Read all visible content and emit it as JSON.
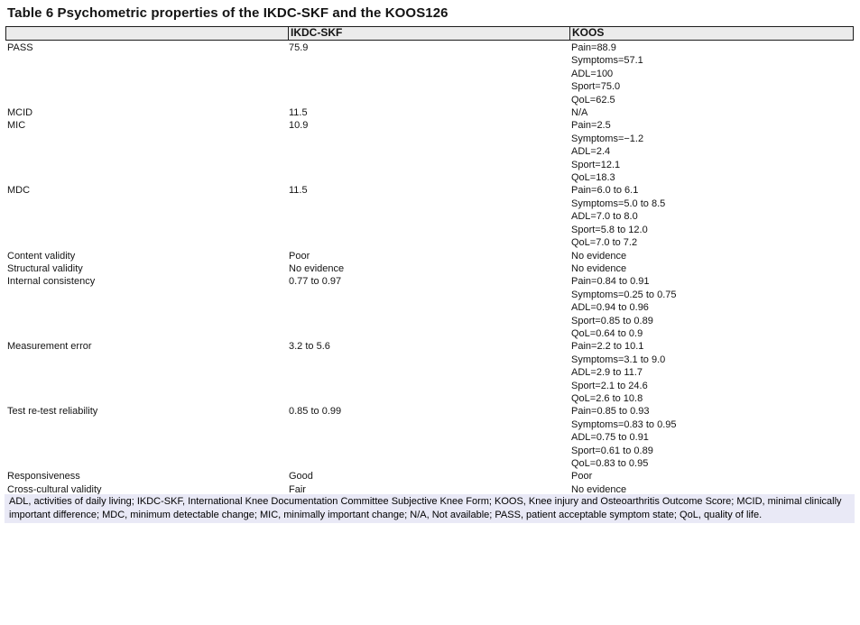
{
  "page": {
    "title": "Table 6 Psychometric properties of the IKDC-SKF and the KOOS126"
  },
  "table": {
    "header": {
      "col1": "",
      "col2": "IKDC-SKF",
      "col3": "KOOS"
    },
    "rows": [
      {
        "property": "PASS",
        "ikdc_skf": "75.9",
        "koos": [
          "Pain=88.9",
          "Symptoms=57.1",
          "ADL=100",
          "Sport=75.0",
          "QoL=62.5"
        ]
      },
      {
        "property": "MCID",
        "ikdc_skf": "11.5",
        "koos": [
          "N/A"
        ]
      },
      {
        "property": "MIC",
        "ikdc_skf": "10.9",
        "koos": [
          "Pain=2.5",
          "Symptoms=−1.2",
          "ADL=2.4",
          "Sport=12.1",
          "QoL=18.3"
        ]
      },
      {
        "property": "MDC",
        "ikdc_skf": "11.5",
        "koos": [
          "Pain=6.0 to 6.1",
          "Symptoms=5.0 to 8.5",
          "ADL=7.0 to 8.0",
          "Sport=5.8 to 12.0",
          "QoL=7.0 to 7.2"
        ]
      },
      {
        "property": "Content validity",
        "ikdc_skf": "Poor",
        "koos": [
          "No evidence"
        ]
      },
      {
        "property": "Structural validity",
        "ikdc_skf": "No evidence",
        "koos": [
          "No evidence"
        ]
      },
      {
        "property": "Internal consistency",
        "ikdc_skf": "0.77 to 0.97",
        "koos": [
          "Pain=0.84 to 0.91",
          "Symptoms=0.25 to 0.75",
          "ADL=0.94 to 0.96",
          "Sport=0.85 to 0.89",
          "QoL=0.64 to 0.9"
        ]
      },
      {
        "property": "Measurement error",
        "ikdc_skf": "3.2 to 5.6",
        "koos": [
          "Pain=2.2 to 10.1",
          "Symptoms=3.1 to 9.0",
          "ADL=2.9 to 11.7",
          "Sport=2.1 to 24.6",
          "QoL=2.6 to 10.8"
        ]
      },
      {
        "property": "Test re-test reliability",
        "ikdc_skf": "0.85 to 0.99",
        "koos": [
          "Pain=0.85 to 0.93",
          "Symptoms=0.83 to 0.95",
          "ADL=0.75 to 0.91",
          "Sport=0.61 to 0.89",
          "QoL=0.83 to 0.95"
        ]
      },
      {
        "property": "Responsiveness",
        "ikdc_skf": "Good",
        "koos": [
          "Poor"
        ]
      },
      {
        "property": "Cross-cultural validity",
        "ikdc_skf": "Fair",
        "koos": [
          "No evidence"
        ]
      }
    ]
  },
  "footnote": "ADL, activities of daily living; IKDC-SKF, International Knee Documentation Committee Subjective Knee Form; KOOS, Knee injury and Osteoarthritis Outcome Score; MCID, minimal clinically important difference; MDC, minimum detectable change; MIC, minimally important change; N/A, Not available; PASS, patient acceptable symptom state; QoL, quality of life.",
  "colors": {
    "header_bg": "#ebebeb",
    "footnote_bg": "#e9e9f6",
    "border": "#1c1c1c",
    "text": "#141414"
  }
}
